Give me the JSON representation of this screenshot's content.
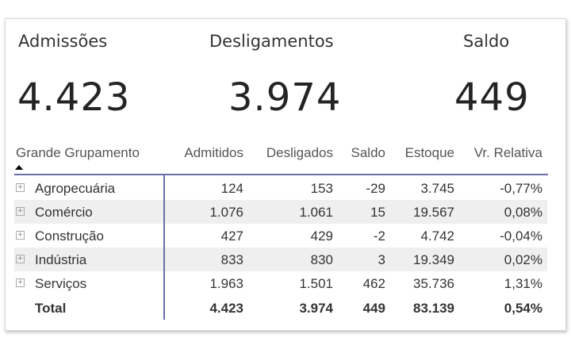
{
  "kpis": [
    {
      "label": "Admissões",
      "value": "4.423"
    },
    {
      "label": "Desligamentos",
      "value": "3.974"
    },
    {
      "label": "Saldo",
      "value": "449"
    }
  ],
  "table": {
    "columns": [
      "Grande Grupamento",
      "Admitidos",
      "Desligados",
      "Saldo",
      "Estoque",
      "Vr. Relativa"
    ],
    "sort_icon": "triangle-up",
    "rows": [
      [
        "Agropecuária",
        "124",
        "153",
        "-29",
        "3.745",
        "-0,77%"
      ],
      [
        "Comércio",
        "1.076",
        "1.061",
        "15",
        "19.567",
        "0,08%"
      ],
      [
        "Construção",
        "427",
        "429",
        "-2",
        "4.742",
        "-0,04%"
      ],
      [
        "Indústria",
        "833",
        "830",
        "3",
        "19.349",
        "0,02%"
      ],
      [
        "Serviços",
        "1.963",
        "1.501",
        "462",
        "35.736",
        "1,31%"
      ]
    ],
    "total": [
      "Total",
      "4.423",
      "3.974",
      "449",
      "83.139",
      "0,54%"
    ]
  },
  "colors": {
    "accent_line": "#6e6ea8",
    "stripe": "#efefef"
  }
}
